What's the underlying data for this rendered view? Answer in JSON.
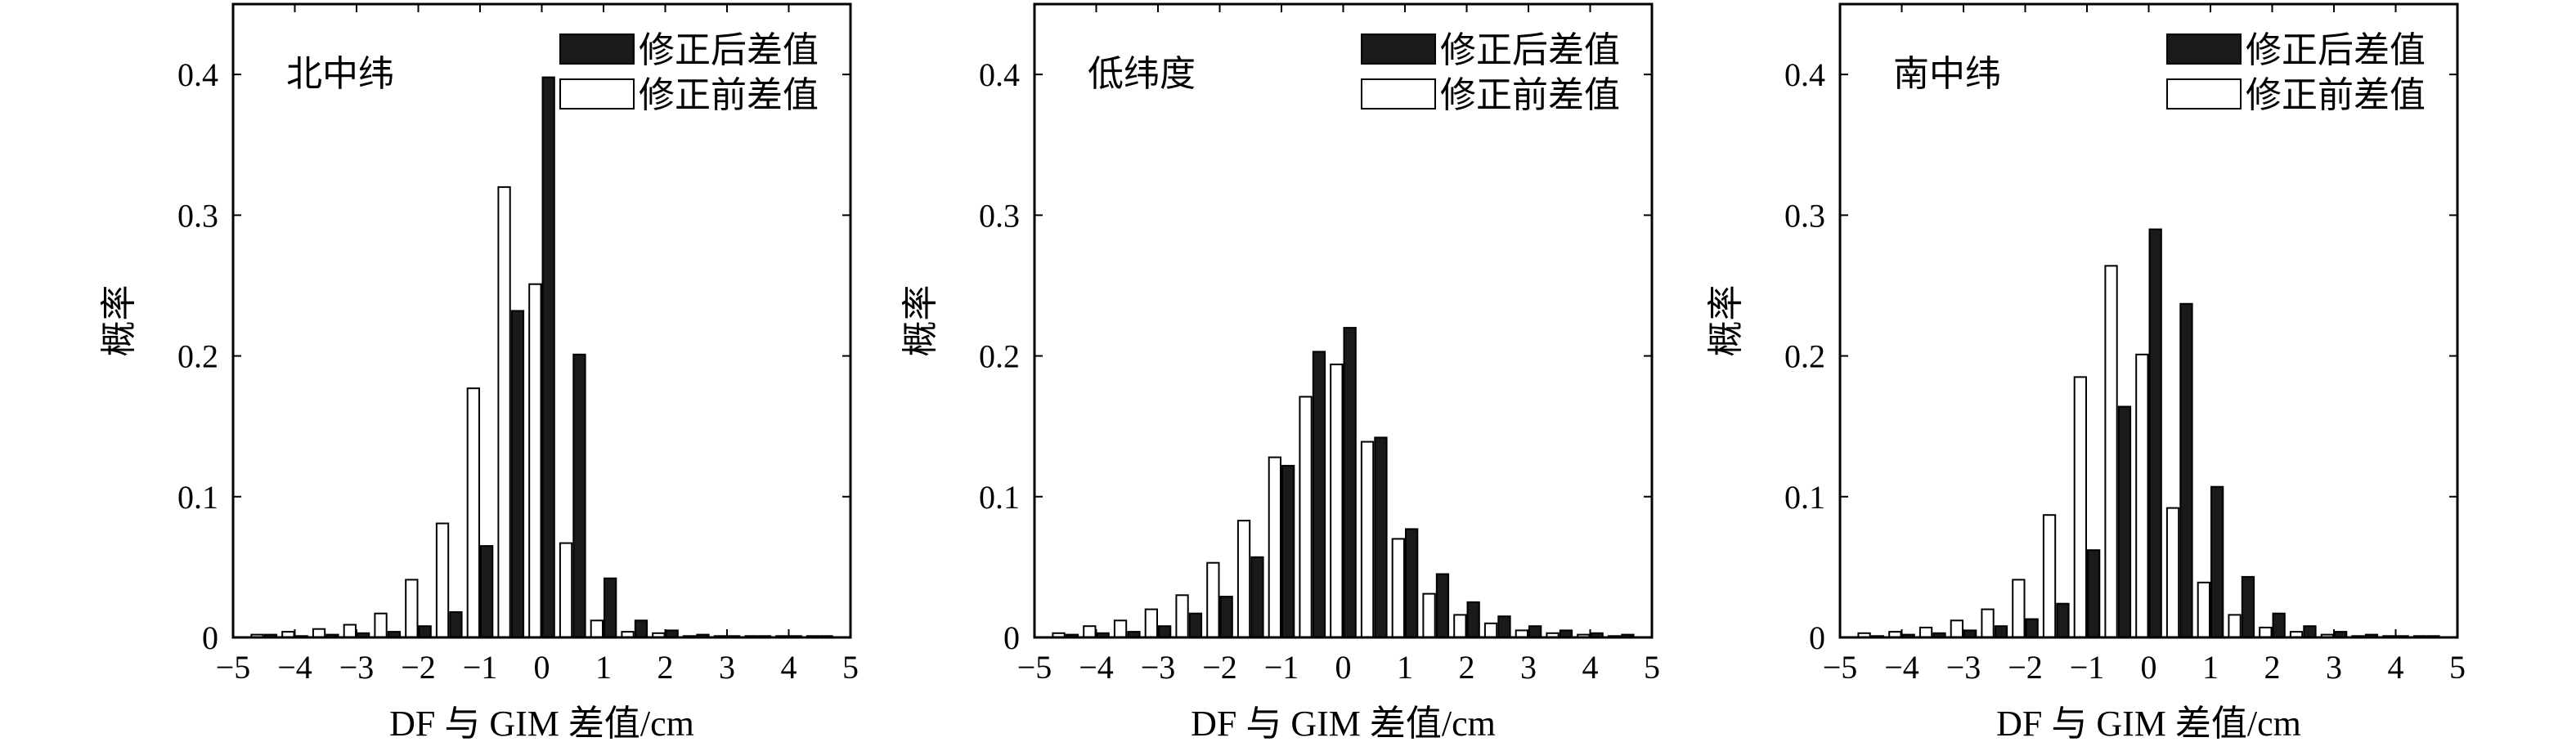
{
  "colors": {
    "after": "#1a1a1a",
    "before": "#ffffff",
    "outline": "#000000"
  },
  "chart_data": [
    {
      "type": "bar",
      "title": "北中纬",
      "xlabel": "DF 与 GIM 差值/cm",
      "ylabel": "概率",
      "xlim": [
        -5,
        5
      ],
      "ylim": [
        0,
        0.45
      ],
      "xticks": [
        "−5",
        "−4",
        "−3",
        "−2",
        "−1",
        "0",
        "1",
        "2",
        "3",
        "4",
        "5"
      ],
      "yticks": [
        "0",
        "0.1",
        "0.2",
        "0.3",
        "0.4"
      ],
      "x": [
        -4.5,
        -4,
        -3.5,
        -3,
        -2.5,
        -2,
        -1.5,
        -1,
        -0.5,
        0,
        0.5,
        1,
        1.5,
        2,
        2.5,
        3,
        3.5,
        4,
        4.5
      ],
      "series": [
        {
          "name": "修正后差值",
          "values": [
            0.002,
            0.001,
            0.002,
            0.003,
            0.004,
            0.008,
            0.018,
            0.065,
            0.232,
            0.398,
            0.201,
            0.042,
            0.012,
            0.005,
            0.002,
            0.001,
            0.001,
            0.001,
            0.001
          ]
        },
        {
          "name": "修正前差值",
          "values": [
            0.002,
            0.004,
            0.006,
            0.009,
            0.017,
            0.041,
            0.081,
            0.177,
            0.32,
            0.251,
            0.067,
            0.012,
            0.004,
            0.003,
            0.001,
            0.001,
            0.001,
            0.001,
            0.001
          ]
        }
      ],
      "legend_position": "top-right",
      "grid": false
    },
    {
      "type": "bar",
      "title": "低纬度",
      "xlabel": "DF 与 GIM 差值/cm",
      "ylabel": "概率",
      "xlim": [
        -5,
        5
      ],
      "ylim": [
        0,
        0.45
      ],
      "xticks": [
        "−5",
        "−4",
        "−3",
        "−2",
        "−1",
        "0",
        "1",
        "2",
        "3",
        "4",
        "5"
      ],
      "yticks": [
        "0",
        "0.1",
        "0.2",
        "0.3",
        "0.4"
      ],
      "x": [
        -4.5,
        -4,
        -3.5,
        -3,
        -2.5,
        -2,
        -1.5,
        -1,
        -0.5,
        0,
        0.5,
        1,
        1.5,
        2,
        2.5,
        3,
        3.5,
        4,
        4.5
      ],
      "series": [
        {
          "name": "修正后差值",
          "values": [
            0.002,
            0.003,
            0.004,
            0.008,
            0.017,
            0.029,
            0.057,
            0.122,
            0.203,
            0.22,
            0.142,
            0.077,
            0.045,
            0.025,
            0.015,
            0.008,
            0.005,
            0.003,
            0.002
          ]
        },
        {
          "name": "修正前差值",
          "values": [
            0.003,
            0.008,
            0.012,
            0.02,
            0.03,
            0.053,
            0.083,
            0.128,
            0.171,
            0.194,
            0.139,
            0.07,
            0.031,
            0.016,
            0.01,
            0.005,
            0.003,
            0.002,
            0.001
          ]
        }
      ],
      "legend_position": "top-right",
      "grid": false
    },
    {
      "type": "bar",
      "title": "南中纬",
      "xlabel": "DF 与 GIM 差值/cm",
      "ylabel": "概率",
      "xlim": [
        -5,
        5
      ],
      "ylim": [
        0,
        0.45
      ],
      "xticks": [
        "−5",
        "−4",
        "−3",
        "−2",
        "−1",
        "0",
        "1",
        "2",
        "3",
        "4",
        "5"
      ],
      "yticks": [
        "0",
        "0.1",
        "0.2",
        "0.3",
        "0.4"
      ],
      "x": [
        -4.5,
        -4,
        -3.5,
        -3,
        -2.5,
        -2,
        -1.5,
        -1,
        -0.5,
        0,
        0.5,
        1,
        1.5,
        2,
        2.5,
        3,
        3.5,
        4,
        4.5
      ],
      "series": [
        {
          "name": "修正后差值",
          "values": [
            0.001,
            0.002,
            0.003,
            0.005,
            0.008,
            0.013,
            0.024,
            0.062,
            0.164,
            0.29,
            0.237,
            0.107,
            0.043,
            0.017,
            0.008,
            0.004,
            0.002,
            0.001,
            0.001
          ]
        },
        {
          "name": "修正前差值",
          "values": [
            0.003,
            0.004,
            0.007,
            0.012,
            0.02,
            0.041,
            0.087,
            0.185,
            0.264,
            0.201,
            0.092,
            0.039,
            0.016,
            0.007,
            0.004,
            0.002,
            0.001,
            0.001,
            0.001
          ]
        }
      ],
      "legend_position": "top-right",
      "grid": false
    }
  ]
}
